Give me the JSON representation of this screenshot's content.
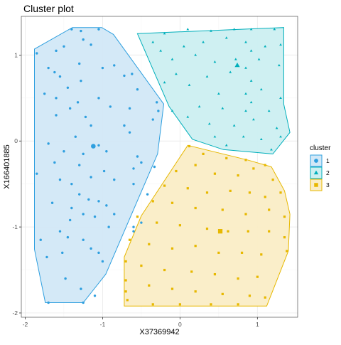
{
  "chart_data": {
    "type": "scatter",
    "title": "Cluster plot",
    "xlabel": "X37369942",
    "ylabel": "X166401885",
    "xlim": [
      -2.05,
      1.52
    ],
    "ylim": [
      -2.05,
      1.45
    ],
    "x_ticks": [
      -2,
      -1,
      0,
      1
    ],
    "y_ticks": [
      -2,
      -1,
      0,
      1
    ],
    "grid": true,
    "legend": {
      "title": "cluster",
      "position": "right"
    },
    "series": [
      {
        "name": "1",
        "color": "#2E9FDF",
        "fill": "#D2E8F7",
        "marker": "circle",
        "hull": [
          [
            -1.39,
            1.32
          ],
          [
            -1.01,
            1.32
          ],
          [
            -0.86,
            1.24
          ],
          [
            -0.21,
            0.43
          ],
          [
            -0.29,
            -0.15
          ],
          [
            -0.96,
            -1.55
          ],
          [
            -1.25,
            -1.88
          ],
          [
            -1.74,
            -1.88
          ],
          [
            -1.88,
            -1.26
          ],
          [
            -1.88,
            1.07
          ]
        ],
        "centroid": [
          -1.12,
          -0.06
        ],
        "points": [
          [
            -1.4,
            1.3
          ],
          [
            -1.28,
            1.28
          ],
          [
            -1.05,
            1.3
          ],
          [
            -1.25,
            1.18
          ],
          [
            -1.6,
            1.05
          ],
          [
            -1.5,
            1.1
          ],
          [
            -1.85,
            1.02
          ],
          [
            -1.15,
            1.12
          ],
          [
            -1.3,
            0.9
          ],
          [
            -1.7,
            0.85
          ],
          [
            -1.55,
            0.75
          ],
          [
            -1.62,
            0.8
          ],
          [
            -1.0,
            0.85
          ],
          [
            -0.85,
            0.88
          ],
          [
            -0.62,
            0.78
          ],
          [
            -0.72,
            0.76
          ],
          [
            -0.55,
            0.6
          ],
          [
            -1.28,
            0.7
          ],
          [
            -1.45,
            0.62
          ],
          [
            -1.75,
            0.55
          ],
          [
            -1.6,
            0.5
          ],
          [
            -1.05,
            0.5
          ],
          [
            -0.9,
            0.4
          ],
          [
            -0.3,
            0.45
          ],
          [
            -0.28,
            0.35
          ],
          [
            -0.65,
            0.38
          ],
          [
            -1.32,
            0.45
          ],
          [
            -1.42,
            0.38
          ],
          [
            -1.6,
            0.3
          ],
          [
            -1.22,
            0.28
          ],
          [
            -1.15,
            0.18
          ],
          [
            -0.72,
            0.18
          ],
          [
            -0.65,
            0.1
          ],
          [
            -0.35,
            0.25
          ],
          [
            -1.35,
            0.05
          ],
          [
            -1.05,
            -0.05
          ],
          [
            -1.7,
            -0.03
          ],
          [
            -0.95,
            -0.12
          ],
          [
            -1.5,
            -0.12
          ],
          [
            -1.25,
            -0.15
          ],
          [
            -0.55,
            -0.18
          ],
          [
            -0.5,
            -0.25
          ],
          [
            -0.33,
            -0.3
          ],
          [
            -0.6,
            -0.32
          ],
          [
            -1.62,
            -0.25
          ],
          [
            -1.3,
            -0.28
          ],
          [
            -0.98,
            -0.35
          ],
          [
            -1.15,
            -0.42
          ],
          [
            -0.85,
            -0.45
          ],
          [
            -1.85,
            -0.38
          ],
          [
            -1.55,
            -0.45
          ],
          [
            -1.4,
            -0.5
          ],
          [
            -0.6,
            -0.5
          ],
          [
            -0.42,
            -0.62
          ],
          [
            -1.3,
            -0.62
          ],
          [
            -1.18,
            -0.68
          ],
          [
            -1.05,
            -0.7
          ],
          [
            -1.65,
            -0.72
          ],
          [
            -1.4,
            -0.78
          ],
          [
            -0.95,
            -0.75
          ],
          [
            -0.85,
            -0.85
          ],
          [
            -1.25,
            -0.85
          ],
          [
            -1.1,
            -0.88
          ],
          [
            -1.42,
            -0.92
          ],
          [
            -0.5,
            -0.95
          ],
          [
            -0.6,
            -1.0
          ],
          [
            -0.6,
            -1.05
          ],
          [
            -0.92,
            -1.0
          ],
          [
            -1.55,
            -1.05
          ],
          [
            -1.8,
            -1.15
          ],
          [
            -1.45,
            -1.12
          ],
          [
            -1.25,
            -1.15
          ],
          [
            -1.15,
            -1.25
          ],
          [
            -1.52,
            -1.3
          ],
          [
            -1.72,
            -1.35
          ],
          [
            -1.05,
            -1.3
          ],
          [
            -1.0,
            -1.4
          ],
          [
            -1.48,
            -1.6
          ],
          [
            -1.28,
            -1.72
          ],
          [
            -1.7,
            -1.88
          ],
          [
            -1.25,
            -1.88
          ],
          [
            -1.1,
            -1.8
          ]
        ]
      },
      {
        "name": "2",
        "color": "#00AFBB",
        "fill": "#CCEFF1",
        "marker": "triangle",
        "hull": [
          [
            -0.55,
            1.25
          ],
          [
            1.34,
            1.32
          ],
          [
            1.34,
            0.43
          ],
          [
            1.42,
            0.1
          ],
          [
            1.2,
            -0.15
          ],
          [
            0.56,
            -0.1
          ],
          [
            0.16,
            0.02
          ],
          [
            -0.14,
            0.4
          ]
        ],
        "centroid": [
          0.74,
          0.88
        ],
        "points": [
          [
            -0.2,
            1.25
          ],
          [
            0.1,
            1.3
          ],
          [
            0.4,
            1.28
          ],
          [
            0.7,
            1.3
          ],
          [
            0.92,
            1.3
          ],
          [
            1.22,
            1.3
          ],
          [
            1.3,
            1.12
          ],
          [
            0.85,
            1.15
          ],
          [
            0.6,
            1.2
          ],
          [
            0.3,
            1.15
          ],
          [
            0.05,
            1.1
          ],
          [
            -0.35,
            1.15
          ],
          [
            -0.25,
            1.05
          ],
          [
            -0.1,
            0.95
          ],
          [
            0.2,
            1.0
          ],
          [
            0.45,
            0.92
          ],
          [
            0.72,
            0.95
          ],
          [
            1.02,
            0.95
          ],
          [
            1.28,
            0.88
          ],
          [
            0.85,
            0.85
          ],
          [
            0.65,
            0.8
          ],
          [
            0.35,
            0.75
          ],
          [
            -0.05,
            0.78
          ],
          [
            -0.2,
            0.68
          ],
          [
            0.12,
            0.65
          ],
          [
            0.5,
            0.55
          ],
          [
            0.85,
            0.55
          ],
          [
            1.05,
            0.6
          ],
          [
            1.3,
            0.5
          ],
          [
            0.25,
            0.4
          ],
          [
            0.55,
            0.38
          ],
          [
            0.85,
            0.35
          ],
          [
            1.15,
            0.35
          ],
          [
            -0.1,
            0.35
          ],
          [
            0.1,
            0.28
          ],
          [
            0.38,
            0.2
          ],
          [
            0.7,
            0.18
          ],
          [
            0.95,
            0.25
          ],
          [
            1.25,
            0.15
          ],
          [
            0.45,
            0.05
          ],
          [
            0.82,
            0.05
          ],
          [
            1.05,
            0.02
          ],
          [
            1.3,
            0.05
          ],
          [
            0.6,
            -0.05
          ],
          [
            1.18,
            -0.1
          ],
          [
            0.92,
            1.05
          ],
          [
            0.92,
            0.7
          ],
          [
            0.92,
            0.45
          ],
          [
            1.1,
            1.1
          ]
        ]
      },
      {
        "name": "3",
        "color": "#E7B800",
        "fill": "#FAEDC6",
        "marker": "square",
        "hull": [
          [
            0.1,
            -0.05
          ],
          [
            0.87,
            -0.22
          ],
          [
            1.18,
            -0.3
          ],
          [
            1.35,
            -0.58
          ],
          [
            1.42,
            -0.85
          ],
          [
            1.4,
            -1.28
          ],
          [
            1.12,
            -1.92
          ],
          [
            -0.72,
            -1.92
          ],
          [
            -0.72,
            -1.35
          ],
          [
            -0.5,
            -0.87
          ]
        ],
        "centroid": [
          0.52,
          -1.05
        ],
        "points": [
          [
            0.12,
            -0.06
          ],
          [
            0.3,
            -0.15
          ],
          [
            0.6,
            -0.2
          ],
          [
            0.85,
            -0.22
          ],
          [
            1.1,
            -0.28
          ],
          [
            0.2,
            -0.28
          ],
          [
            -0.05,
            -0.35
          ],
          [
            0.45,
            -0.38
          ],
          [
            0.75,
            -0.4
          ],
          [
            0.95,
            -0.32
          ],
          [
            1.2,
            -0.45
          ],
          [
            1.3,
            -0.6
          ],
          [
            -0.2,
            -0.52
          ],
          [
            0.1,
            -0.55
          ],
          [
            0.35,
            -0.6
          ],
          [
            0.65,
            -0.58
          ],
          [
            0.9,
            -0.6
          ],
          [
            1.1,
            -0.65
          ],
          [
            -0.35,
            -0.7
          ],
          [
            -0.1,
            -0.72
          ],
          [
            0.2,
            -0.78
          ],
          [
            0.55,
            -0.8
          ],
          [
            0.85,
            -0.85
          ],
          [
            1.15,
            -0.8
          ],
          [
            1.35,
            -0.88
          ],
          [
            -0.55,
            -0.88
          ],
          [
            -0.3,
            -0.95
          ],
          [
            0.0,
            -0.98
          ],
          [
            0.35,
            -1.02
          ],
          [
            0.62,
            -1.05
          ],
          [
            0.88,
            -1.05
          ],
          [
            1.15,
            -1.05
          ],
          [
            1.35,
            -1.12
          ],
          [
            -0.65,
            -1.15
          ],
          [
            -0.4,
            -1.2
          ],
          [
            -0.1,
            -1.25
          ],
          [
            0.2,
            -1.22
          ],
          [
            0.5,
            -1.3
          ],
          [
            0.8,
            -1.3
          ],
          [
            1.05,
            -1.32
          ],
          [
            1.38,
            -1.28
          ],
          [
            -0.7,
            -1.4
          ],
          [
            -0.5,
            -1.45
          ],
          [
            -0.2,
            -1.5
          ],
          [
            0.15,
            -1.52
          ],
          [
            0.45,
            -1.55
          ],
          [
            0.75,
            -1.6
          ],
          [
            1.0,
            -1.58
          ],
          [
            -0.7,
            -1.62
          ],
          [
            -0.4,
            -1.68
          ],
          [
            -0.1,
            -1.72
          ],
          [
            0.2,
            -1.75
          ],
          [
            0.55,
            -1.78
          ],
          [
            0.9,
            -1.8
          ],
          [
            1.1,
            -1.82
          ],
          [
            -0.68,
            -1.85
          ],
          [
            -0.35,
            -1.9
          ],
          [
            0.0,
            -1.9
          ],
          [
            0.4,
            -1.9
          ],
          [
            0.75,
            -1.9
          ],
          [
            -0.7,
            -1.75
          ]
        ]
      }
    ]
  }
}
